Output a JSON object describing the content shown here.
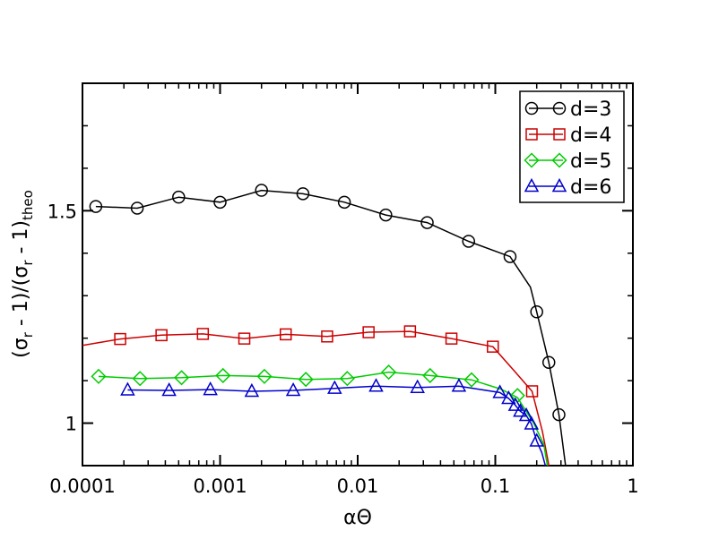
{
  "chart_data": {
    "type": "line",
    "title": "",
    "xlabel": "αΘ",
    "ylabel_parts": [
      "(σ",
      "r",
      " - 1)/(σ",
      "r",
      " - 1)",
      "theo"
    ],
    "xscale": "log",
    "xlim": [
      0.0001,
      1
    ],
    "ylim": [
      0.9,
      1.8
    ],
    "x_ticks": [
      {
        "value": 0.0001,
        "label": "0.0001"
      },
      {
        "value": 0.001,
        "label": "0.001"
      },
      {
        "value": 0.01,
        "label": "0.01"
      },
      {
        "value": 0.1,
        "label": "0.1"
      },
      {
        "value": 1,
        "label": "1"
      }
    ],
    "y_ticks": [
      {
        "value": 1,
        "label": "1"
      },
      {
        "value": 1.5,
        "label": "1.5"
      }
    ],
    "y_minor_ticks": [
      1.1,
      1.2,
      1.3,
      1.4,
      1.6,
      1.7
    ],
    "legend_position": "top-right",
    "series": [
      {
        "name": "d=3",
        "color": "#000000",
        "marker": "circle",
        "line_points": [
          [
            0.000125,
            1.51
          ],
          [
            0.00025,
            1.506
          ],
          [
            0.0005,
            1.532
          ],
          [
            0.001,
            1.52
          ],
          [
            0.002,
            1.548
          ],
          [
            0.004,
            1.54
          ],
          [
            0.008,
            1.52
          ],
          [
            0.016,
            1.49
          ],
          [
            0.032,
            1.472
          ],
          [
            0.064,
            1.428
          ],
          [
            0.128,
            1.392
          ],
          [
            0.18,
            1.32
          ],
          [
            0.2,
            1.262
          ],
          [
            0.245,
            1.143
          ],
          [
            0.29,
            1.02
          ],
          [
            0.33,
            0.88
          ]
        ],
        "markers": [
          [
            0.000125,
            1.51
          ],
          [
            0.00025,
            1.506
          ],
          [
            0.0005,
            1.532
          ],
          [
            0.001,
            1.52
          ],
          [
            0.002,
            1.548
          ],
          [
            0.004,
            1.54
          ],
          [
            0.008,
            1.52
          ],
          [
            0.016,
            1.49
          ],
          [
            0.032,
            1.472
          ],
          [
            0.064,
            1.428
          ],
          [
            0.128,
            1.392
          ],
          [
            0.2,
            1.262
          ],
          [
            0.245,
            1.143
          ],
          [
            0.29,
            1.02
          ]
        ]
      },
      {
        "name": "d=4",
        "color": "#cc0000",
        "marker": "square",
        "line_points": [
          [
            0.0001,
            1.183
          ],
          [
            0.000188,
            1.198
          ],
          [
            0.000375,
            1.207
          ],
          [
            0.00075,
            1.21
          ],
          [
            0.0015,
            1.199
          ],
          [
            0.003,
            1.209
          ],
          [
            0.006,
            1.204
          ],
          [
            0.012,
            1.214
          ],
          [
            0.024,
            1.216
          ],
          [
            0.048,
            1.199
          ],
          [
            0.096,
            1.18
          ],
          [
            0.14,
            1.12
          ],
          [
            0.185,
            1.075
          ],
          [
            0.22,
            0.98
          ],
          [
            0.252,
            0.88
          ]
        ],
        "markers": [
          [
            0.000188,
            1.198
          ],
          [
            0.000375,
            1.207
          ],
          [
            0.00075,
            1.21
          ],
          [
            0.0015,
            1.199
          ],
          [
            0.003,
            1.209
          ],
          [
            0.006,
            1.204
          ],
          [
            0.012,
            1.214
          ],
          [
            0.024,
            1.216
          ],
          [
            0.048,
            1.199
          ],
          [
            0.096,
            1.18
          ],
          [
            0.185,
            1.075
          ]
        ]
      },
      {
        "name": "d=5",
        "color": "#00cc00",
        "marker": "diamond",
        "line_points": [
          [
            0.000131,
            1.11
          ],
          [
            0.000262,
            1.105
          ],
          [
            0.000525,
            1.107
          ],
          [
            0.00105,
            1.112
          ],
          [
            0.0021,
            1.11
          ],
          [
            0.0042,
            1.103
          ],
          [
            0.0084,
            1.105
          ],
          [
            0.0168,
            1.12
          ],
          [
            0.0336,
            1.112
          ],
          [
            0.0672,
            1.102
          ],
          [
            0.11,
            1.08
          ],
          [
            0.145,
            1.06
          ],
          [
            0.19,
            1.0
          ],
          [
            0.225,
            0.95
          ],
          [
            0.245,
            0.88
          ]
        ],
        "markers": [
          [
            0.000131,
            1.11
          ],
          [
            0.000262,
            1.105
          ],
          [
            0.000525,
            1.107
          ],
          [
            0.00105,
            1.112
          ],
          [
            0.0021,
            1.11
          ],
          [
            0.0042,
            1.103
          ],
          [
            0.0084,
            1.105
          ],
          [
            0.0168,
            1.12
          ],
          [
            0.0336,
            1.112
          ],
          [
            0.0672,
            1.102
          ],
          [
            0.145,
            1.065
          ]
        ]
      },
      {
        "name": "d=6",
        "color": "#0000cc",
        "marker": "triangle",
        "line_points": [
          [
            0.000213,
            1.078
          ],
          [
            0.000426,
            1.077
          ],
          [
            0.00085,
            1.079
          ],
          [
            0.0017,
            1.075
          ],
          [
            0.0034,
            1.077
          ],
          [
            0.0068,
            1.082
          ],
          [
            0.0136,
            1.087
          ],
          [
            0.0272,
            1.084
          ],
          [
            0.0544,
            1.087
          ],
          [
            0.108,
            1.072
          ],
          [
            0.125,
            1.058
          ],
          [
            0.14,
            1.042
          ],
          [
            0.152,
            1.028
          ],
          [
            0.168,
            1.018
          ],
          [
            0.183,
            0.998
          ],
          [
            0.2,
            0.958
          ],
          [
            0.218,
            0.93
          ],
          [
            0.24,
            0.88
          ]
        ],
        "markers": [
          [
            0.000213,
            1.078
          ],
          [
            0.000426,
            1.077
          ],
          [
            0.00085,
            1.079
          ],
          [
            0.0017,
            1.075
          ],
          [
            0.0034,
            1.077
          ],
          [
            0.0068,
            1.082
          ],
          [
            0.0136,
            1.087
          ],
          [
            0.0272,
            1.084
          ],
          [
            0.0544,
            1.087
          ],
          [
            0.108,
            1.072
          ],
          [
            0.125,
            1.058
          ],
          [
            0.14,
            1.042
          ],
          [
            0.152,
            1.028
          ],
          [
            0.168,
            1.018
          ],
          [
            0.183,
            0.998
          ],
          [
            0.2,
            0.958
          ]
        ]
      }
    ]
  }
}
